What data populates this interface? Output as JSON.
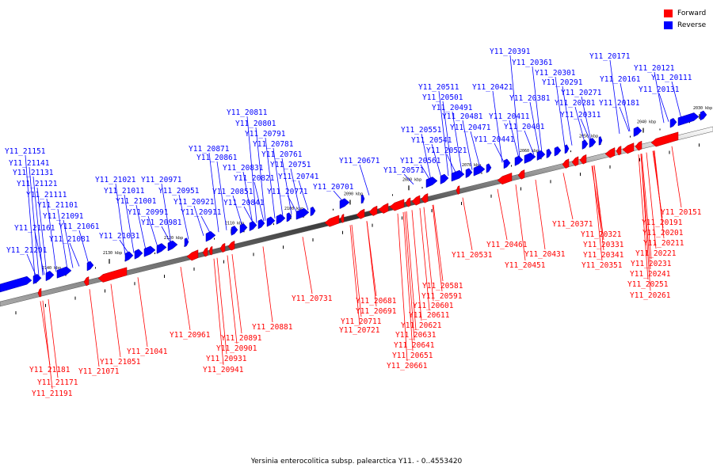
{
  "legend": {
    "forward": {
      "label": "Forward",
      "color": "#ff0000"
    },
    "reverse": {
      "label": "Reverse",
      "color": "#0000ff"
    }
  },
  "caption": "Yersinia enterocolitica subsp. palearctica Y11. - 0..4553420",
  "ticks": [
    "2030 kbp",
    "2040 kbp",
    "2050 kbp",
    "2060 kbp",
    "2070 kbp",
    "2080 kbp",
    "2090 kbp",
    "2100 kbp",
    "2110 kbp",
    "2120 kbp",
    "2130 kbp",
    "2140 kbp"
  ],
  "reverse_labels": [
    "Y11_20171",
    "Y11_20121",
    "Y11_20111",
    "Y11_20161",
    "Y11_20131",
    "Y11_20181",
    "Y11_20391",
    "Y11_20361",
    "Y11_20301",
    "Y11_20291",
    "Y11_20271",
    "Y11_20281",
    "Y11_20311",
    "Y11_20421",
    "Y11_20381",
    "Y11_20411",
    "Y11_20401",
    "Y11_20441",
    "Y11_20511",
    "Y11_20501",
    "Y11_20491",
    "Y11_20481",
    "Y11_20471",
    "Y11_20551",
    "Y11_20541",
    "Y11_20521",
    "Y11_20561",
    "Y11_20571",
    "Y11_20671",
    "Y11_20701",
    "Y11_20811",
    "Y11_20801",
    "Y11_20791",
    "Y11_20781",
    "Y11_20761",
    "Y11_20751",
    "Y11_20741",
    "Y11_20771",
    "Y11_20831",
    "Y11_20821",
    "Y11_20871",
    "Y11_20861",
    "Y11_20851",
    "Y11_20841",
    "Y11_20971",
    "Y11_20951",
    "Y11_20921",
    "Y11_20911",
    "Y11_21021",
    "Y11_21011",
    "Y11_21001",
    "Y11_20991",
    "Y11_20981",
    "Y11_21031",
    "Y11_21151",
    "Y11_21141",
    "Y11_21131",
    "Y11_21121",
    "Y11_21111",
    "Y11_21101",
    "Y11_21091",
    "Y11_21161",
    "Y11_21061",
    "Y11_21081",
    "Y11_21201"
  ],
  "forward_labels": [
    "Y11_20151",
    "Y11_20191",
    "Y11_20201",
    "Y11_20211",
    "Y11_20221",
    "Y11_20231",
    "Y11_20241",
    "Y11_20251",
    "Y11_20261",
    "Y11_20371",
    "Y11_20321",
    "Y11_20331",
    "Y11_20341",
    "Y11_20351",
    "Y11_20461",
    "Y11_20431",
    "Y11_20451",
    "Y11_20531",
    "Y11_20581",
    "Y11_20591",
    "Y11_20601",
    "Y11_20611",
    "Y11_20621",
    "Y11_20631",
    "Y11_20641",
    "Y11_20651",
    "Y11_20661",
    "Y11_20681",
    "Y11_20691",
    "Y11_20711",
    "Y11_20721",
    "Y11_20731",
    "Y11_20881",
    "Y11_20891",
    "Y11_20901",
    "Y11_20931",
    "Y11_20941",
    "Y11_20961",
    "Y11_21041",
    "Y11_21051",
    "Y11_21071",
    "Y11_21181",
    "Y11_21171",
    "Y11_21191"
  ]
}
